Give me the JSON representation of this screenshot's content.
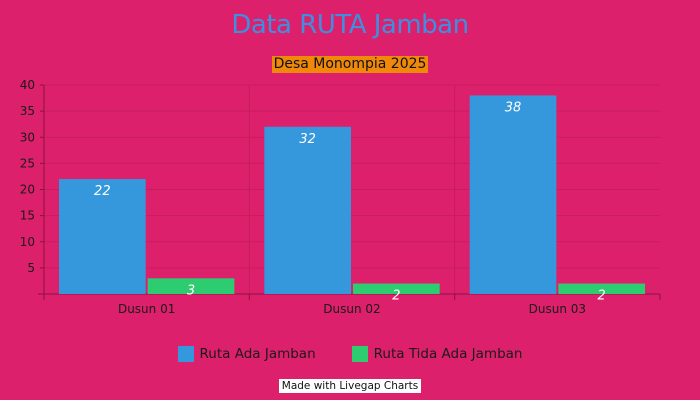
{
  "colors": {
    "background": "#dd206b",
    "title": "#3d8fe0",
    "subtitle_bg": "#f0890a",
    "series_1": "#3598dc",
    "series_2": "#2ecc71",
    "grid": "#c81c5e",
    "axis": "#8a1240",
    "text": "#1a1a1a"
  },
  "credit": "Made with Livegap Charts",
  "chart_data": {
    "type": "bar",
    "title": "Data RUTA Jamban",
    "subtitle": "Desa Monompia 2025",
    "categories": [
      "Dusun 01",
      "Dusun 02",
      "Dusun 03"
    ],
    "series": [
      {
        "name": "Ruta Ada Jamban",
        "values": [
          22,
          32,
          38
        ]
      },
      {
        "name": "Ruta Tida Ada Jamban",
        "values": [
          3,
          2,
          2
        ]
      }
    ],
    "ylim": [
      0,
      40
    ],
    "yticks": [
      5,
      10,
      15,
      20,
      25,
      30,
      35,
      40
    ],
    "grid": true,
    "legend_position": "bottom"
  }
}
